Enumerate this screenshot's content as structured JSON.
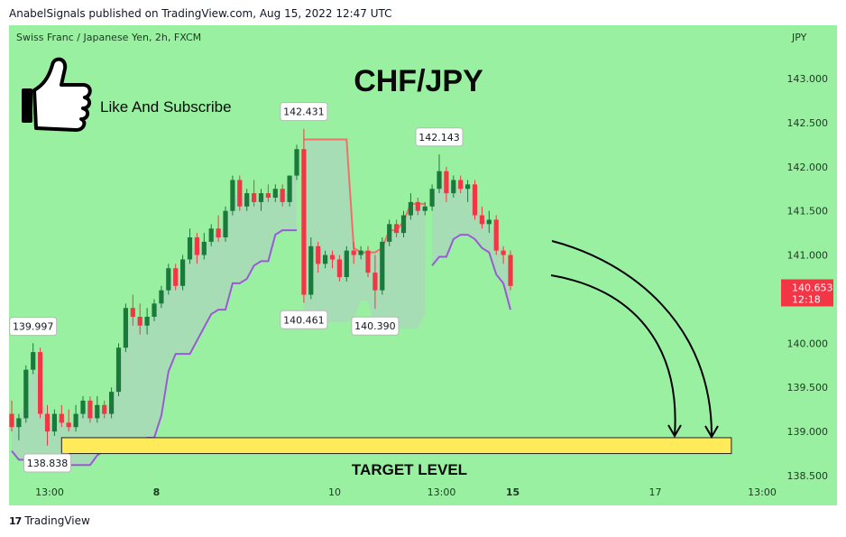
{
  "header": {
    "publish_line": "AnabelSignals published on TradingView.com, Aug 15, 2022 12:47 UTC"
  },
  "symbol": {
    "description": "Swiss Franc / Japanese Yen, 2h, FXCM",
    "currency": "JPY"
  },
  "overlay": {
    "pair_title": "CHF/JPY",
    "cta": "Like And Subscribe",
    "target_label": "TARGET LEVEL"
  },
  "footer": {
    "brand": "TradingView"
  },
  "colors": {
    "background": "#99f0a0",
    "bull": "#1a7a3c",
    "bear": "#f23645",
    "upper_line": "#f0706a",
    "lower_line": "#9b59d6",
    "target_fill": "#ffeb5a",
    "current_price_tag": "#f23645"
  },
  "chart_data": {
    "type": "candlestick",
    "title": "CHF/JPY",
    "timeframe": "2h",
    "ylim": [
      138.4,
      143.3
    ],
    "y_ticks": [
      "143.000",
      "142.500",
      "142.000",
      "141.500",
      "141.000",
      "140.500",
      "140.000",
      "139.500",
      "139.000",
      "138.500"
    ],
    "x_ticks": [
      {
        "label": "13:00",
        "bar": 0,
        "bold": false
      },
      {
        "label": "8",
        "bar": 15,
        "bold": true
      },
      {
        "label": "10",
        "bar": 40,
        "bold": false
      },
      {
        "label": "13:00",
        "bar": 55,
        "bold": false
      },
      {
        "label": "15",
        "bar": 65,
        "bold": true
      },
      {
        "label": "17",
        "bar": 85,
        "bold": false
      },
      {
        "label": "13:00",
        "bar": 100,
        "bold": false
      }
    ],
    "candles": [
      {
        "o": 139.2,
        "h": 139.35,
        "l": 139.0,
        "c": 139.05
      },
      {
        "o": 139.05,
        "h": 139.2,
        "l": 138.9,
        "c": 139.15
      },
      {
        "o": 139.15,
        "h": 139.75,
        "l": 139.1,
        "c": 139.7
      },
      {
        "o": 139.7,
        "h": 140.0,
        "l": 139.65,
        "c": 139.9
      },
      {
        "o": 139.9,
        "h": 139.95,
        "l": 139.15,
        "c": 139.2
      },
      {
        "o": 139.2,
        "h": 139.3,
        "l": 138.84,
        "c": 139.0
      },
      {
        "o": 139.0,
        "h": 139.25,
        "l": 138.95,
        "c": 139.2
      },
      {
        "o": 139.2,
        "h": 139.3,
        "l": 139.05,
        "c": 139.1
      },
      {
        "o": 139.1,
        "h": 139.25,
        "l": 139.0,
        "c": 139.05
      },
      {
        "o": 139.05,
        "h": 139.3,
        "l": 139.0,
        "c": 139.2
      },
      {
        "o": 139.2,
        "h": 139.4,
        "l": 139.15,
        "c": 139.35
      },
      {
        "o": 139.35,
        "h": 139.4,
        "l": 139.1,
        "c": 139.15
      },
      {
        "o": 139.15,
        "h": 139.4,
        "l": 139.1,
        "c": 139.3
      },
      {
        "o": 139.3,
        "h": 139.35,
        "l": 139.15,
        "c": 139.2
      },
      {
        "o": 139.2,
        "h": 139.5,
        "l": 139.15,
        "c": 139.45
      },
      {
        "o": 139.45,
        "h": 140.0,
        "l": 139.4,
        "c": 139.95
      },
      {
        "o": 139.95,
        "h": 140.45,
        "l": 139.9,
        "c": 140.4
      },
      {
        "o": 140.4,
        "h": 140.55,
        "l": 140.2,
        "c": 140.3
      },
      {
        "o": 140.3,
        "h": 140.45,
        "l": 140.1,
        "c": 140.2
      },
      {
        "o": 140.2,
        "h": 140.4,
        "l": 140.1,
        "c": 140.3
      },
      {
        "o": 140.3,
        "h": 140.5,
        "l": 140.25,
        "c": 140.45
      },
      {
        "o": 140.45,
        "h": 140.65,
        "l": 140.4,
        "c": 140.6
      },
      {
        "o": 140.6,
        "h": 140.9,
        "l": 140.55,
        "c": 140.85
      },
      {
        "o": 140.85,
        "h": 140.9,
        "l": 140.6,
        "c": 140.65
      },
      {
        "o": 140.65,
        "h": 141.0,
        "l": 140.6,
        "c": 140.95
      },
      {
        "o": 140.95,
        "h": 141.3,
        "l": 140.9,
        "c": 141.2
      },
      {
        "o": 141.2,
        "h": 141.25,
        "l": 140.9,
        "c": 141.0
      },
      {
        "o": 141.0,
        "h": 141.25,
        "l": 140.95,
        "c": 141.15
      },
      {
        "o": 141.15,
        "h": 141.35,
        "l": 141.1,
        "c": 141.3
      },
      {
        "o": 141.3,
        "h": 141.45,
        "l": 141.15,
        "c": 141.2
      },
      {
        "o": 141.2,
        "h": 141.55,
        "l": 141.15,
        "c": 141.5
      },
      {
        "o": 141.5,
        "h": 141.9,
        "l": 141.45,
        "c": 141.85
      },
      {
        "o": 141.85,
        "h": 141.9,
        "l": 141.5,
        "c": 141.55
      },
      {
        "o": 141.55,
        "h": 141.75,
        "l": 141.5,
        "c": 141.7
      },
      {
        "o": 141.7,
        "h": 141.85,
        "l": 141.55,
        "c": 141.6
      },
      {
        "o": 141.6,
        "h": 141.75,
        "l": 141.5,
        "c": 141.7
      },
      {
        "o": 141.7,
        "h": 141.8,
        "l": 141.6,
        "c": 141.65
      },
      {
        "o": 141.65,
        "h": 141.8,
        "l": 141.6,
        "c": 141.75
      },
      {
        "o": 141.75,
        "h": 141.8,
        "l": 141.55,
        "c": 141.6
      },
      {
        "o": 141.6,
        "h": 141.9,
        "l": 141.55,
        "c": 141.9
      },
      {
        "o": 141.9,
        "h": 142.25,
        "l": 141.85,
        "c": 142.2
      },
      {
        "o": 142.2,
        "h": 142.43,
        "l": 140.46,
        "c": 140.55
      },
      {
        "o": 140.55,
        "h": 141.2,
        "l": 140.5,
        "c": 141.1
      },
      {
        "o": 141.1,
        "h": 141.15,
        "l": 140.8,
        "c": 140.9
      },
      {
        "o": 140.9,
        "h": 141.05,
        "l": 140.85,
        "c": 141.0
      },
      {
        "o": 141.0,
        "h": 141.05,
        "l": 140.85,
        "c": 140.95
      },
      {
        "o": 140.95,
        "h": 141.0,
        "l": 140.7,
        "c": 140.75
      },
      {
        "o": 140.75,
        "h": 141.1,
        "l": 140.7,
        "c": 141.05
      },
      {
        "o": 141.05,
        "h": 141.15,
        "l": 140.9,
        "c": 141.0
      },
      {
        "o": 141.0,
        "h": 141.1,
        "l": 140.95,
        "c": 141.05
      },
      {
        "o": 141.05,
        "h": 141.1,
        "l": 140.75,
        "c": 140.8
      },
      {
        "o": 140.8,
        "h": 141.0,
        "l": 140.39,
        "c": 140.6
      },
      {
        "o": 140.6,
        "h": 141.2,
        "l": 140.55,
        "c": 141.15
      },
      {
        "o": 141.15,
        "h": 141.4,
        "l": 141.1,
        "c": 141.35
      },
      {
        "o": 141.35,
        "h": 141.4,
        "l": 141.2,
        "c": 141.25
      },
      {
        "o": 141.25,
        "h": 141.5,
        "l": 141.2,
        "c": 141.45
      },
      {
        "o": 141.45,
        "h": 141.7,
        "l": 141.4,
        "c": 141.6
      },
      {
        "o": 141.6,
        "h": 141.65,
        "l": 141.45,
        "c": 141.5
      },
      {
        "o": 141.5,
        "h": 141.6,
        "l": 141.45,
        "c": 141.55
      },
      {
        "o": 141.55,
        "h": 141.8,
        "l": 141.5,
        "c": 141.75
      },
      {
        "o": 141.75,
        "h": 142.14,
        "l": 141.7,
        "c": 141.95
      },
      {
        "o": 141.95,
        "h": 142.0,
        "l": 141.6,
        "c": 141.7
      },
      {
        "o": 141.7,
        "h": 141.9,
        "l": 141.65,
        "c": 141.85
      },
      {
        "o": 141.85,
        "h": 141.9,
        "l": 141.7,
        "c": 141.75
      },
      {
        "o": 141.75,
        "h": 141.85,
        "l": 141.6,
        "c": 141.8
      },
      {
        "o": 141.8,
        "h": 141.85,
        "l": 141.4,
        "c": 141.45
      },
      {
        "o": 141.45,
        "h": 141.55,
        "l": 141.3,
        "c": 141.35
      },
      {
        "o": 141.35,
        "h": 141.5,
        "l": 141.25,
        "c": 141.4
      },
      {
        "o": 141.4,
        "h": 141.45,
        "l": 141.0,
        "c": 141.05
      },
      {
        "o": 141.05,
        "h": 141.1,
        "l": 140.9,
        "c": 141.0
      },
      {
        "o": 141.0,
        "h": 141.05,
        "l": 140.6,
        "c": 140.65
      }
    ],
    "labeled_points": [
      {
        "label": "139.997",
        "bar": 3,
        "value": 139.997,
        "position": "above"
      },
      {
        "label": "138.838",
        "bar": 5,
        "value": 138.838,
        "position": "below"
      },
      {
        "label": "142.431",
        "bar": 41,
        "value": 142.431,
        "position": "above"
      },
      {
        "label": "140.461",
        "bar": 41,
        "value": 140.461,
        "position": "below"
      },
      {
        "label": "140.390",
        "bar": 51,
        "value": 140.39,
        "position": "below"
      },
      {
        "label": "142.143",
        "bar": 60,
        "value": 142.143,
        "position": "above"
      }
    ],
    "current_price": {
      "value": "140.653",
      "countdown": "12:18"
    },
    "target_zone": {
      "from_bar": 7,
      "to_bar": 101,
      "low": 138.75,
      "high": 138.93,
      "label": "TARGET LEVEL"
    }
  }
}
